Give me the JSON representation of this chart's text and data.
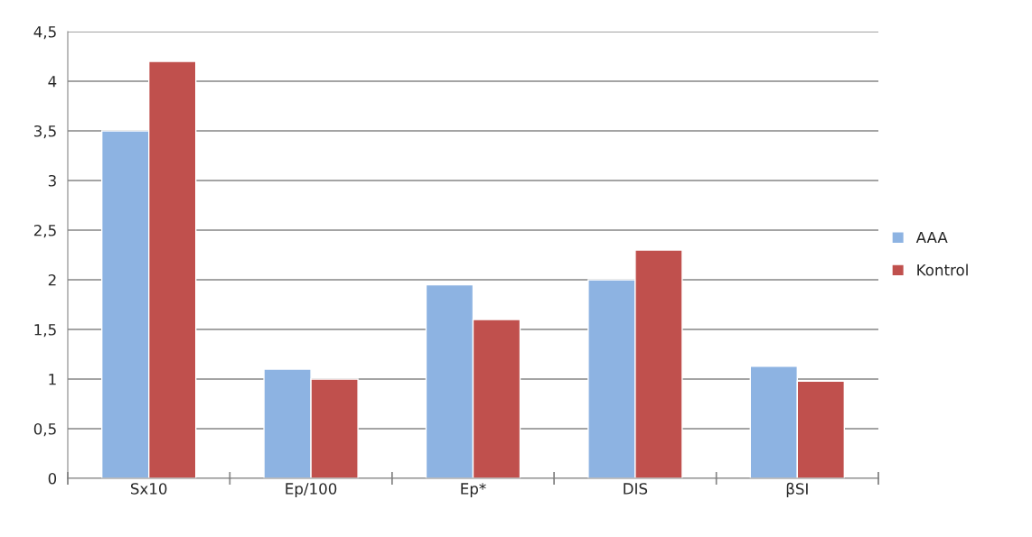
{
  "chart_data": {
    "type": "bar",
    "categories": [
      "Sx10",
      "Ep/100",
      "Ep*",
      "DIS",
      "βSI"
    ],
    "series": [
      {
        "name": "AAA",
        "color": "#8db3e2",
        "values": [
          3.5,
          1.1,
          1.95,
          2.0,
          1.13
        ]
      },
      {
        "name": "Kontrol",
        "color": "#c0504d",
        "values": [
          4.2,
          1.0,
          1.6,
          2.3,
          0.98
        ]
      }
    ],
    "ylim": [
      0,
      4.5
    ],
    "yticks": [
      0,
      {
        "value": 0.5,
        "label": "0,5"
      },
      1,
      {
        "value": 1.5,
        "label": "1,5"
      },
      2,
      {
        "value": 2.5,
        "label": "2,5"
      },
      3,
      {
        "value": 3.5,
        "label": "3,5"
      },
      4,
      {
        "value": 4.5,
        "label": "4,5"
      }
    ],
    "grid": "y",
    "legend": "right"
  }
}
